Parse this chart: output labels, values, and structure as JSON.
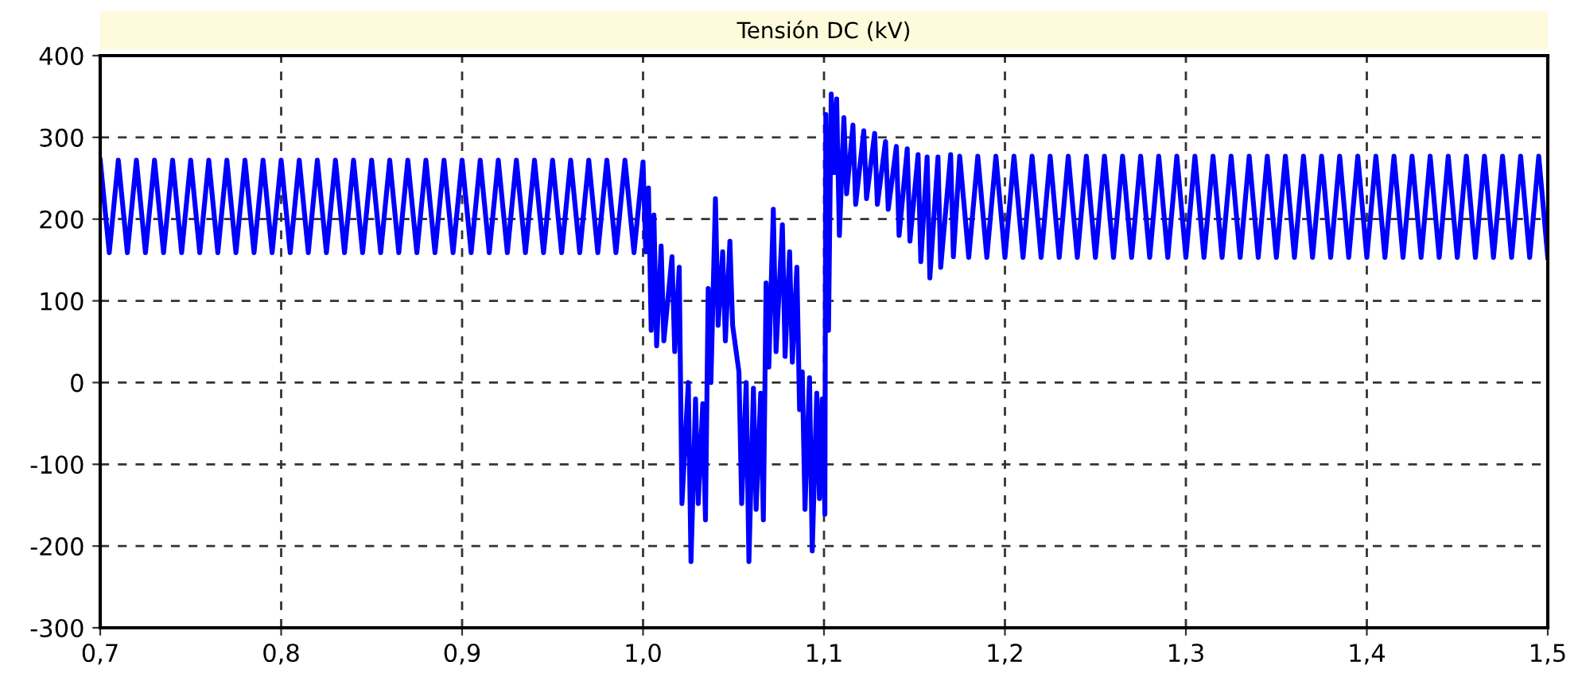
{
  "chart_data": {
    "type": "line",
    "title": "Tensión DC (kV)",
    "xlim": [
      0.7,
      1.5
    ],
    "ylim": [
      -300,
      400
    ],
    "xticks": [
      {
        "value": 0.7,
        "label": "0,7"
      },
      {
        "value": 0.8,
        "label": "0,8"
      },
      {
        "value": 0.9,
        "label": "0,9"
      },
      {
        "value": 1.0,
        "label": "1,0"
      },
      {
        "value": 1.1,
        "label": "1,1"
      },
      {
        "value": 1.2,
        "label": "1,2"
      },
      {
        "value": 1.3,
        "label": "1,3"
      },
      {
        "value": 1.4,
        "label": "1,4"
      },
      {
        "value": 1.5,
        "label": "1,5"
      }
    ],
    "yticks": [
      -300,
      -200,
      -100,
      0,
      100,
      200,
      300,
      400
    ],
    "grid": true,
    "line_style": "solid",
    "marker": "none",
    "series": [
      {
        "color": "#0000ff",
        "x": [
          0.7,
          0.705,
          0.71,
          0.715,
          0.72,
          0.725,
          0.73,
          0.735,
          0.74,
          0.745,
          0.75,
          0.755,
          0.76,
          0.765,
          0.77,
          0.775,
          0.78,
          0.785,
          0.79,
          0.795,
          0.8,
          0.805,
          0.81,
          0.815,
          0.82,
          0.825,
          0.83,
          0.835,
          0.84,
          0.845,
          0.85,
          0.855,
          0.86,
          0.865,
          0.87,
          0.875,
          0.88,
          0.885,
          0.89,
          0.895,
          0.9,
          0.905,
          0.91,
          0.915,
          0.92,
          0.925,
          0.93,
          0.935,
          0.94,
          0.945,
          0.95,
          0.955,
          0.96,
          0.965,
          0.97,
          0.975,
          0.98,
          0.985,
          0.99,
          0.995,
          1.0,
          1.0015,
          1.003,
          1.0045,
          1.006,
          1.0075,
          1.01,
          1.0115,
          1.016,
          1.0175,
          1.02,
          1.0215,
          1.025,
          1.0265,
          1.029,
          1.0305,
          1.033,
          1.0345,
          1.036,
          1.0375,
          1.04,
          1.0415,
          1.044,
          1.0455,
          1.048,
          1.0495,
          1.053,
          1.0545,
          1.057,
          1.0585,
          1.061,
          1.0625,
          1.065,
          1.0665,
          1.068,
          1.0695,
          1.072,
          1.0735,
          1.077,
          1.0785,
          1.081,
          1.0825,
          1.085,
          1.0865,
          1.088,
          1.0895,
          1.092,
          1.0935,
          1.096,
          1.0975,
          1.099,
          1.1005,
          1.101,
          1.1025,
          1.104,
          1.1055,
          1.107,
          1.1085,
          1.111,
          1.1125,
          1.116,
          1.1175,
          1.122,
          1.1235,
          1.128,
          1.1295,
          1.134,
          1.1355,
          1.14,
          1.1415,
          1.146,
          1.1475,
          1.152,
          1.1535,
          1.157,
          1.1585,
          1.163,
          1.1645,
          1.17,
          1.1715,
          1.175,
          1.18,
          1.185,
          1.19,
          1.195,
          1.2,
          1.205,
          1.21,
          1.215,
          1.22,
          1.225,
          1.23,
          1.235,
          1.24,
          1.245,
          1.25,
          1.255,
          1.26,
          1.265,
          1.27,
          1.275,
          1.28,
          1.285,
          1.29,
          1.295,
          1.3,
          1.305,
          1.31,
          1.315,
          1.32,
          1.325,
          1.33,
          1.335,
          1.34,
          1.345,
          1.35,
          1.355,
          1.36,
          1.365,
          1.37,
          1.375,
          1.38,
          1.385,
          1.39,
          1.395,
          1.4,
          1.405,
          1.41,
          1.415,
          1.42,
          1.425,
          1.43,
          1.435,
          1.44,
          1.445,
          1.45,
          1.455,
          1.46,
          1.465,
          1.47,
          1.475,
          1.48,
          1.485,
          1.49,
          1.495,
          1.5
        ],
        "values": [
          272,
          159,
          272,
          159,
          272,
          159,
          272,
          159,
          272,
          159,
          272,
          159,
          272,
          159,
          272,
          159,
          272,
          159,
          272,
          159,
          272,
          159,
          272,
          159,
          272,
          159,
          272,
          159,
          272,
          159,
          272,
          159,
          272,
          159,
          272,
          159,
          272,
          159,
          272,
          159,
          272,
          159,
          272,
          159,
          272,
          159,
          272,
          159,
          272,
          159,
          272,
          159,
          272,
          159,
          272,
          159,
          272,
          159,
          272,
          159,
          270,
          160,
          238,
          64,
          205,
          45,
          167,
          51,
          154,
          38,
          141,
          -148,
          0,
          -219,
          -20,
          -148,
          -26,
          -168,
          115,
          0,
          225,
          70,
          160,
          51,
          173,
          70,
          13,
          -148,
          0,
          -219,
          -7,
          -155,
          -13,
          -168,
          122,
          19,
          212,
          38,
          193,
          32,
          160,
          25,
          141,
          -33,
          13,
          -155,
          6,
          -206,
          -13,
          -142,
          -20,
          -161,
          328,
          64,
          353,
          257,
          347,
          180,
          324,
          231,
          315,
          218,
          308,
          225,
          305,
          218,
          295,
          212,
          289,
          180,
          286,
          173,
          279,
          148,
          276,
          128,
          276,
          141,
          279,
          154,
          277,
          153,
          277,
          153,
          277,
          153,
          277,
          153,
          277,
          153,
          277,
          153,
          277,
          153,
          277,
          153,
          277,
          153,
          277,
          153,
          277,
          153,
          277,
          153,
          277,
          153,
          277,
          153,
          277,
          153,
          277,
          153,
          277,
          153,
          277,
          153,
          277,
          153,
          277,
          153,
          277,
          153,
          277,
          153,
          277,
          153,
          277,
          153,
          277,
          153,
          277,
          153,
          277,
          153,
          277,
          153,
          277,
          153,
          277,
          153,
          277,
          153,
          277,
          153,
          277,
          153
        ]
      }
    ]
  }
}
